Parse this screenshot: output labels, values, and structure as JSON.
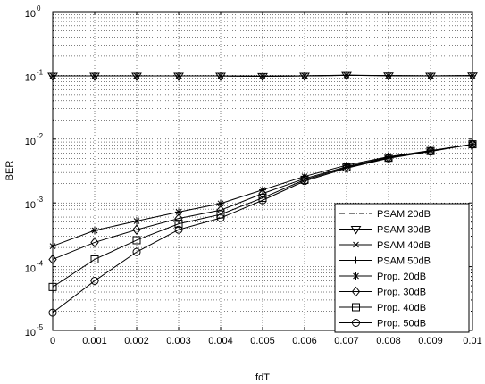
{
  "chart_data": {
    "type": "line",
    "title": "",
    "xlabel": "fdT",
    "ylabel": "BER",
    "xlim": [
      0,
      0.01
    ],
    "ylim": [
      1e-05,
      1
    ],
    "yscale": "log",
    "grid": true,
    "legend_position": "bottom-right",
    "x": [
      0,
      0.001,
      0.002,
      0.003,
      0.004,
      0.005,
      0.006,
      0.007,
      0.008,
      0.009,
      0.01
    ],
    "xticks": [
      "0",
      "0.001",
      "0.002",
      "0.003",
      "0.004",
      "0.005",
      "0.006",
      "0.007",
      "0.008",
      "0.009",
      "0.01"
    ],
    "yticks": [
      {
        "base": "10",
        "exp": "0",
        "value": 1
      },
      {
        "base": "10",
        "exp": "-1",
        "value": 0.1
      },
      {
        "base": "10",
        "exp": "-2",
        "value": 0.01
      },
      {
        "base": "10",
        "exp": "-3",
        "value": 0.001
      },
      {
        "base": "10",
        "exp": "-4",
        "value": 0.0001
      },
      {
        "base": "10",
        "exp": "-5",
        "value": 1e-05
      }
    ],
    "series": [
      {
        "name": "PSAM 20dB",
        "marker": "none",
        "line": "dashdot",
        "values": [
          0.098,
          0.098,
          0.098,
          0.098,
          0.098,
          0.097,
          0.098,
          0.1,
          0.099,
          0.098,
          0.099
        ]
      },
      {
        "name": "PSAM 30dB",
        "marker": "triangle-down",
        "line": "solid",
        "values": [
          0.098,
          0.098,
          0.098,
          0.098,
          0.098,
          0.097,
          0.098,
          0.101,
          0.099,
          0.098,
          0.099
        ]
      },
      {
        "name": "PSAM 40dB",
        "marker": "x",
        "line": "solid",
        "values": [
          0.098,
          0.098,
          0.098,
          0.098,
          0.098,
          0.097,
          0.098,
          0.1,
          0.099,
          0.098,
          0.099
        ]
      },
      {
        "name": "PSAM 50dB",
        "marker": "plus",
        "line": "solid",
        "values": [
          0.098,
          0.098,
          0.098,
          0.098,
          0.098,
          0.097,
          0.098,
          0.1,
          0.099,
          0.098,
          0.099
        ]
      },
      {
        "name": "Prop. 20dB",
        "marker": "asterisk",
        "line": "solid",
        "values": [
          0.00021,
          0.00037,
          0.00052,
          0.00072,
          0.00098,
          0.0016,
          0.0026,
          0.0039,
          0.0053,
          0.0066,
          0.0083
        ]
      },
      {
        "name": "Prop. 30dB",
        "marker": "diamond",
        "line": "solid",
        "values": [
          0.00013,
          0.00024,
          0.00038,
          0.00057,
          0.00077,
          0.0014,
          0.0024,
          0.0037,
          0.0052,
          0.0065,
          0.0083
        ]
      },
      {
        "name": "Prop. 40dB",
        "marker": "square",
        "line": "solid",
        "values": [
          4.8e-05,
          0.00013,
          0.00026,
          0.00047,
          0.00066,
          0.0012,
          0.0023,
          0.0036,
          0.0051,
          0.0065,
          0.0083
        ]
      },
      {
        "name": "Prop. 50dB",
        "marker": "circle",
        "line": "solid",
        "values": [
          1.9e-05,
          6e-05,
          0.00017,
          0.00038,
          0.00058,
          0.0011,
          0.0022,
          0.0035,
          0.005,
          0.0064,
          0.0083
        ]
      }
    ]
  }
}
